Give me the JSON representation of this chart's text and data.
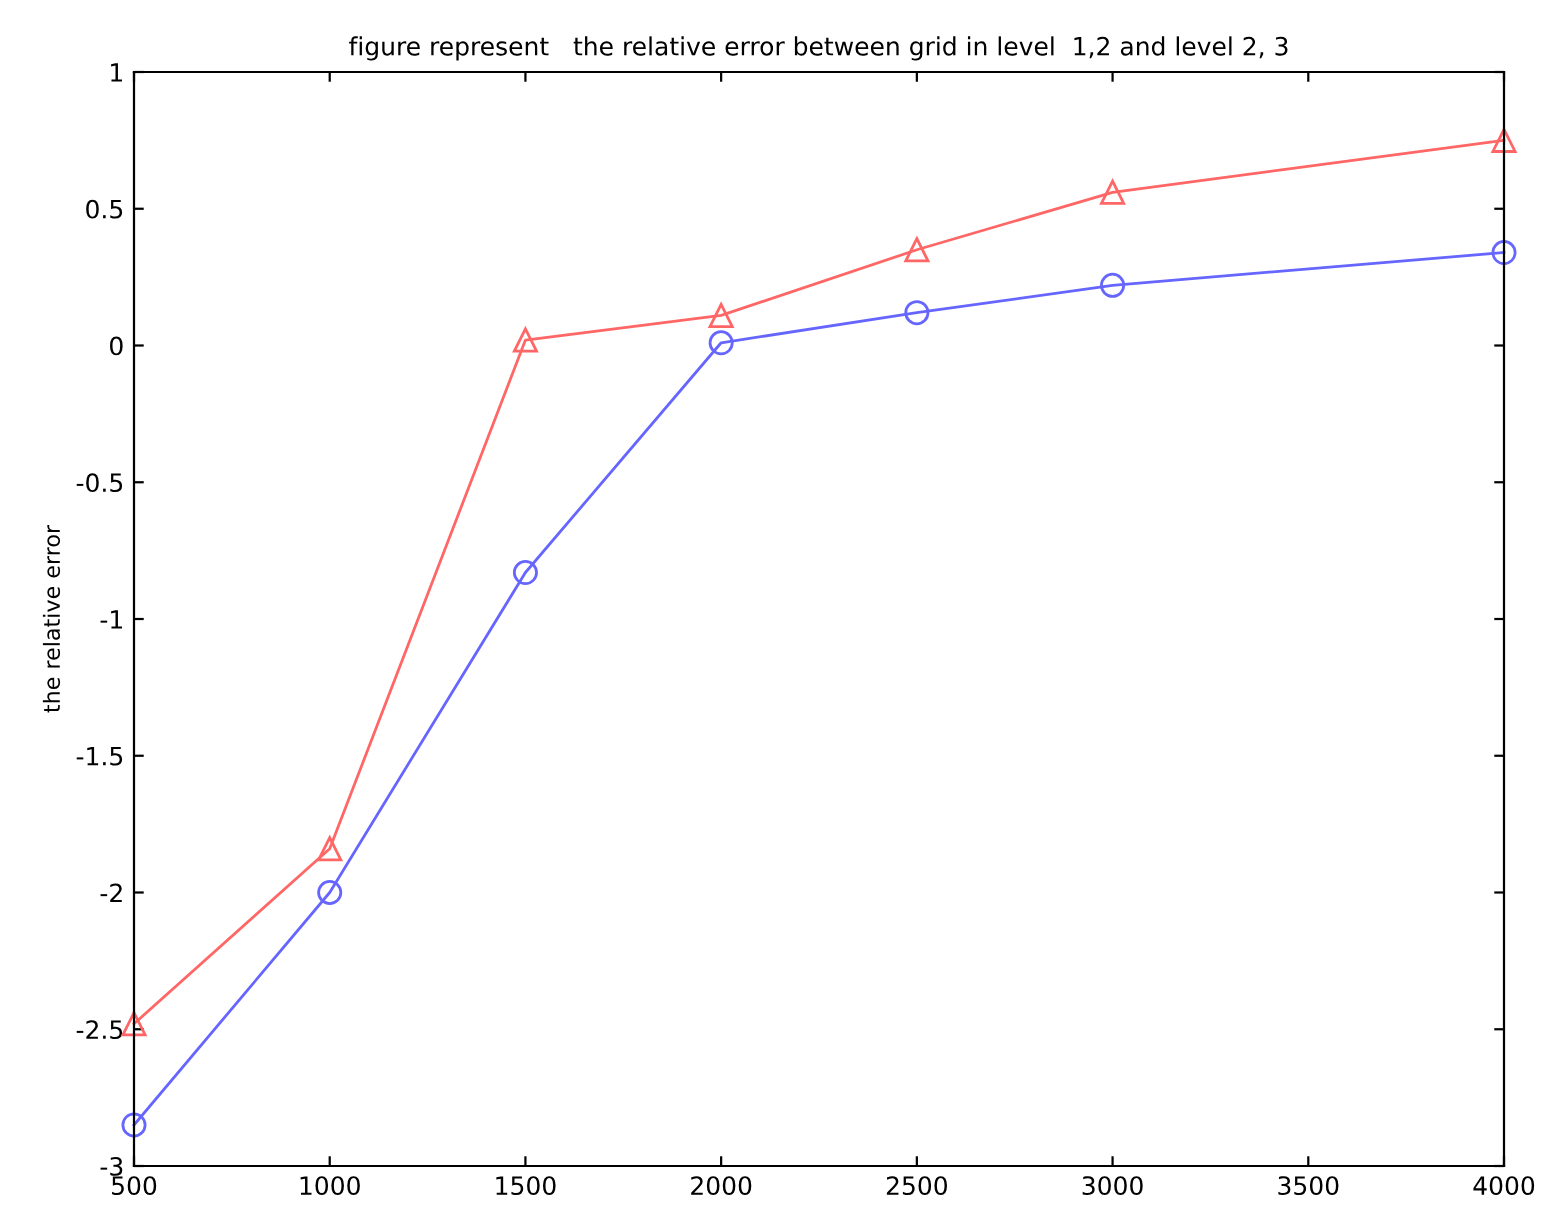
{
  "chart_data": {
    "type": "line",
    "title": "figure represent   the relative error between grid in level  1,2 and level 2, 3",
    "ylabel": "the relative error",
    "x": [
      500,
      1000,
      1500,
      2000,
      2500,
      3000,
      4000
    ],
    "series": [
      {
        "color": "#ff6666",
        "marker": "triangle",
        "values": [
          -2.48,
          -1.84,
          0.02,
          0.11,
          0.35,
          0.56,
          0.75
        ]
      },
      {
        "color": "#6666ff",
        "marker": "circle",
        "values": [
          -2.85,
          -2.0,
          -0.83,
          0.01,
          0.12,
          0.22,
          0.34
        ]
      }
    ],
    "xlim": [
      500,
      4000
    ],
    "xticks": [
      500,
      1000,
      1500,
      2000,
      2500,
      3000,
      3500,
      4000
    ],
    "ylim": [
      -3,
      1
    ],
    "yticks": [
      -3,
      -2.5,
      -2,
      -1.5,
      -1,
      -0.5,
      0,
      0.5,
      1
    ],
    "grid": false,
    "legend": false,
    "line_style": "solid"
  }
}
